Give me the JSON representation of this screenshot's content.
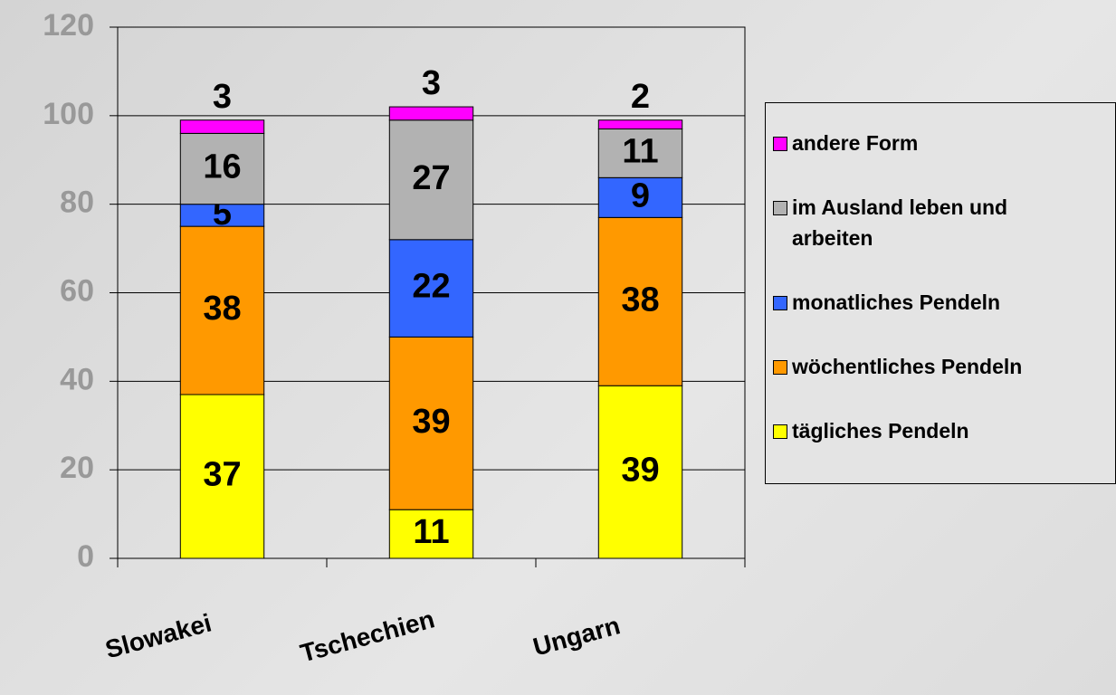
{
  "chart_data": {
    "type": "stacked_bar",
    "categories": [
      "Slowakei",
      "Tschechien",
      "Ungarn"
    ],
    "series": [
      {
        "name": "tägliches Pendeln",
        "color": "#ffff00",
        "values": [
          37,
          11,
          39
        ]
      },
      {
        "name": "wöchentliches Pendeln",
        "color": "#ff9900",
        "values": [
          38,
          39,
          38
        ]
      },
      {
        "name": "monatliches Pendeln",
        "color": "#3366ff",
        "values": [
          5,
          22,
          9
        ]
      },
      {
        "name": "im Ausland leben und arbeiten",
        "color": "#b2b2b2",
        "values": [
          16,
          27,
          11
        ]
      },
      {
        "name": "andere Form",
        "color": "#ff00ff",
        "values": [
          3,
          3,
          2
        ]
      }
    ],
    "ylim": [
      0,
      120
    ],
    "yticks": [
      0,
      20,
      40,
      60,
      80,
      100,
      120
    ],
    "grid": true,
    "legend": "right"
  }
}
